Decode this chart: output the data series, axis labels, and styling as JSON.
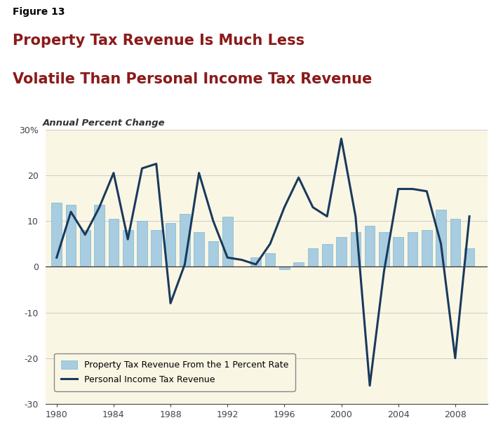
{
  "figure_label": "Figure 13",
  "title_line1": "Property Tax Revenue Is Much Less",
  "title_line2": "Volatile Than Personal Income Tax Revenue",
  "subtitle": "Annual Percent Change",
  "years": [
    1980,
    1981,
    1982,
    1983,
    1984,
    1985,
    1986,
    1987,
    1988,
    1989,
    1990,
    1991,
    1992,
    1993,
    1994,
    1995,
    1996,
    1997,
    1998,
    1999,
    2000,
    2001,
    2002,
    2003,
    2004,
    2005,
    2006,
    2007,
    2008,
    2009
  ],
  "property_tax": [
    14.0,
    13.5,
    8.0,
    13.5,
    10.5,
    8.0,
    10.0,
    8.0,
    9.5,
    11.5,
    7.5,
    5.5,
    11.0,
    0.0,
    2.0,
    3.0,
    -0.5,
    1.0,
    4.0,
    5.0,
    6.5,
    7.5,
    9.0,
    7.5,
    6.5,
    7.5,
    8.0,
    12.5,
    10.5,
    4.0
  ],
  "income_tax": [
    2.0,
    12.0,
    7.0,
    13.0,
    20.5,
    6.0,
    21.5,
    22.5,
    -8.0,
    0.5,
    20.5,
    10.0,
    2.0,
    1.5,
    0.5,
    5.0,
    13.0,
    19.5,
    13.0,
    11.0,
    28.0,
    11.0,
    -26.0,
    -1.0,
    17.0,
    17.0,
    16.5,
    5.0,
    -20.0,
    11.0
  ],
  "bar_color": "#a8cce0",
  "bar_edge_color": "#7ab8d4",
  "line_color": "#1a3a5c",
  "background_color": "#faf6e4",
  "header_bg": "#ffffff",
  "chart_bg": "#faf6e4",
  "ylim": [
    -30,
    30
  ],
  "yticks": [
    -30,
    -20,
    -10,
    0,
    10,
    20,
    30
  ],
  "ytick_labels": [
    "-30",
    "-20",
    "-10",
    "0",
    "10",
    "20",
    "30%"
  ],
  "xticks": [
    1980,
    1984,
    1988,
    1992,
    1996,
    2000,
    2004,
    2008
  ],
  "legend_labels": [
    "Property Tax Revenue From the 1 Percent Rate",
    "Personal Income Tax Revenue"
  ],
  "legend_bg": "#faf6e4",
  "title_color": "#8b1a1a",
  "figure_label_color": "#000000",
  "subtitle_color": "#333333",
  "grid_color": "#cccccc",
  "separator_color": "#111111"
}
